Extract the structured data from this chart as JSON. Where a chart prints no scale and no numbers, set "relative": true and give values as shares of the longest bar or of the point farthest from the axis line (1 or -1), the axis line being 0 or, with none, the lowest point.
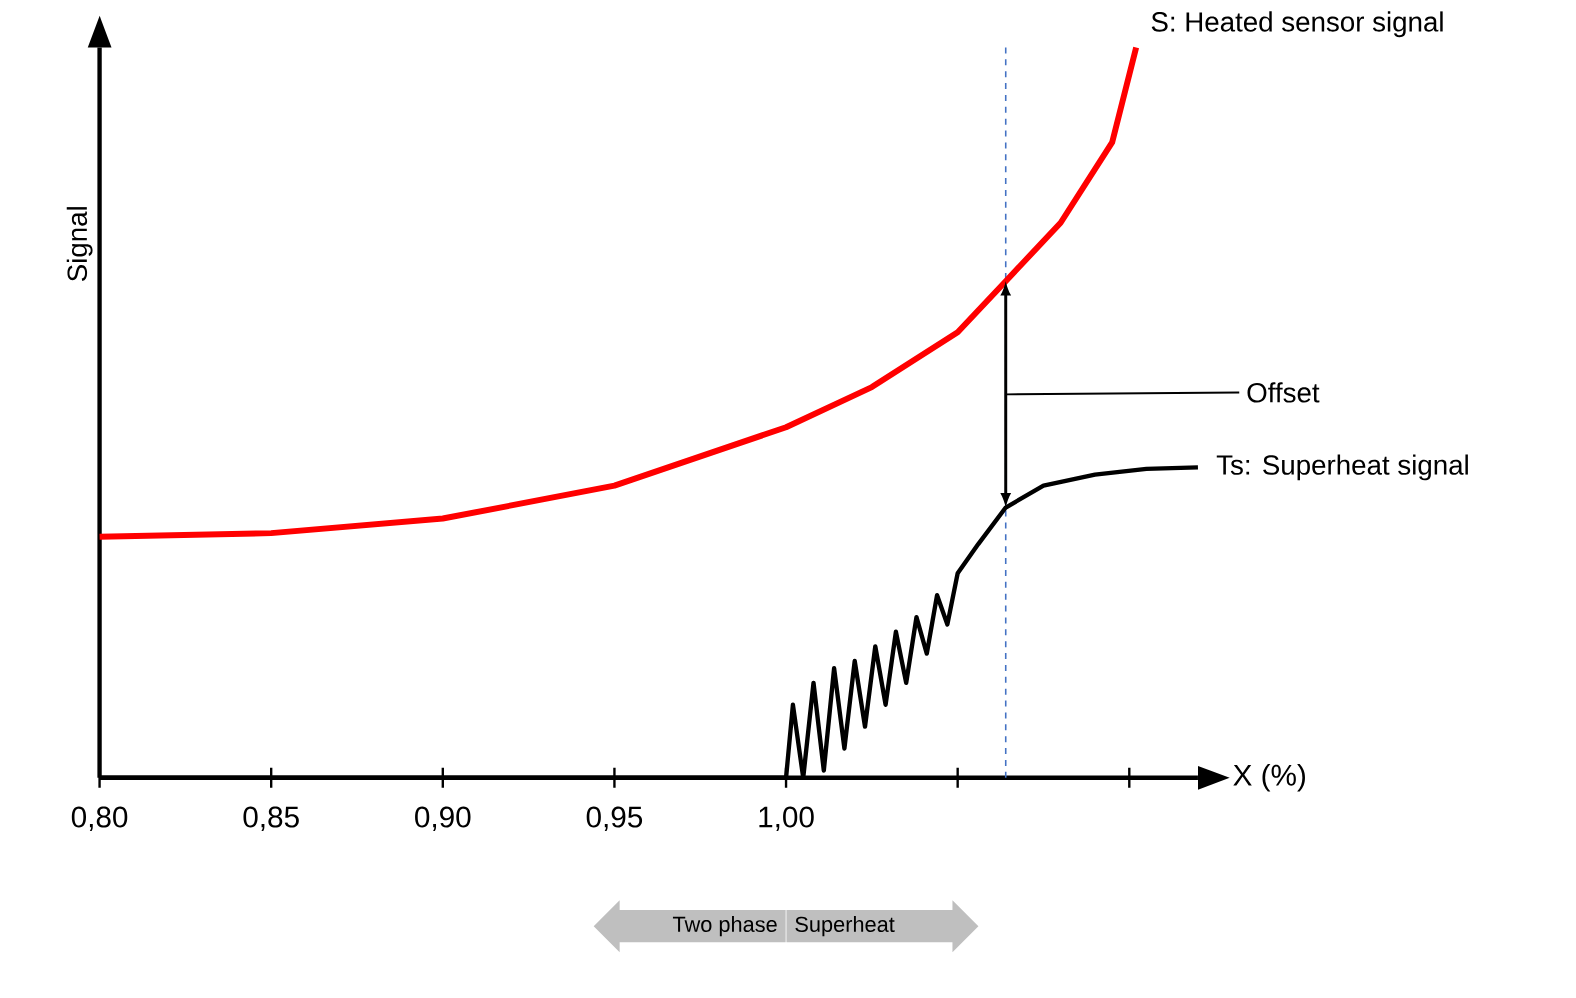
{
  "chart_data": {
    "type": "line",
    "relative": true,
    "xlabel": "X (%)",
    "ylabel": "Signal",
    "xlim": [
      0.8,
      1.12
    ],
    "xticks": [
      {
        "value": 0.8,
        "label": "0,80"
      },
      {
        "value": 0.85,
        "label": "0,85"
      },
      {
        "value": 0.9,
        "label": "0,90"
      },
      {
        "value": 0.95,
        "label": "0,95"
      },
      {
        "value": 1.0,
        "label": "1,00"
      },
      {
        "value": 1.05,
        "label": null
      },
      {
        "value": 1.1,
        "label": null
      }
    ],
    "series": [
      {
        "name": "S: Heated sensor signal",
        "color": "#ff0000",
        "x": [
          0.8,
          0.85,
          0.9,
          0.95,
          1.0,
          1.025,
          1.05,
          1.064,
          1.08,
          1.095,
          1.102
        ],
        "values": [
          0.33,
          0.335,
          0.355,
          0.4,
          0.48,
          0.535,
          0.61,
          0.68,
          0.76,
          0.87,
          1.0
        ]
      },
      {
        "name": "Ts: Superheat signal",
        "color": "#000000",
        "x": [
          0.8,
          1.0,
          1.002,
          1.005,
          1.008,
          1.011,
          1.014,
          1.017,
          1.02,
          1.023,
          1.026,
          1.029,
          1.032,
          1.035,
          1.038,
          1.041,
          1.044,
          1.047,
          1.05,
          1.056,
          1.064,
          1.075,
          1.09,
          1.105,
          1.12
        ],
        "values": [
          0,
          0,
          0.1,
          0,
          0.13,
          0.01,
          0.15,
          0.04,
          0.16,
          0.07,
          0.18,
          0.1,
          0.2,
          0.13,
          0.22,
          0.17,
          0.25,
          0.21,
          0.28,
          0.32,
          0.37,
          0.4,
          0.415,
          0.423,
          0.425
        ]
      }
    ],
    "ref_lines": [
      {
        "axis": "x",
        "value": 1.064,
        "color": "#4472c4",
        "line_style": "dashed"
      }
    ],
    "annotations": [
      "Offset",
      "Two phase",
      "Superheat"
    ]
  }
}
